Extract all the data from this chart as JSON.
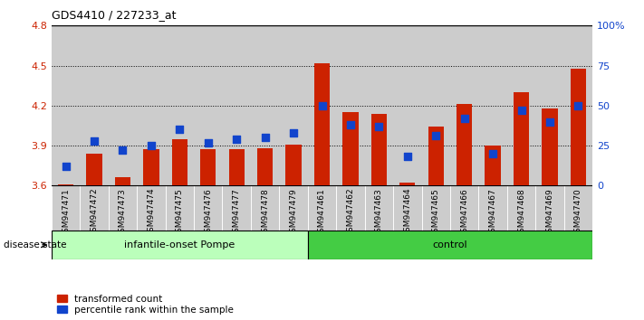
{
  "title": "GDS4410 / 227233_at",
  "samples": [
    "GSM947471",
    "GSM947472",
    "GSM947473",
    "GSM947474",
    "GSM947475",
    "GSM947476",
    "GSM947477",
    "GSM947478",
    "GSM947479",
    "GSM947461",
    "GSM947462",
    "GSM947463",
    "GSM947464",
    "GSM947465",
    "GSM947466",
    "GSM947467",
    "GSM947468",
    "GSM947469",
    "GSM947470"
  ],
  "red_values": [
    3.61,
    3.84,
    3.66,
    3.87,
    3.95,
    3.87,
    3.87,
    3.88,
    3.91,
    4.52,
    4.15,
    4.14,
    3.62,
    4.04,
    4.21,
    3.9,
    4.3,
    4.18,
    4.48
  ],
  "blue_values": [
    12,
    28,
    22,
    25,
    35,
    27,
    29,
    30,
    33,
    50,
    38,
    37,
    18,
    31,
    42,
    20,
    47,
    40,
    50
  ],
  "group1_label": "infantile-onset Pompe",
  "group2_label": "control",
  "group1_count": 9,
  "group2_count": 10,
  "ylim_left": [
    3.6,
    4.8
  ],
  "ylim_right": [
    0,
    100
  ],
  "yticks_left": [
    3.6,
    3.9,
    4.2,
    4.5,
    4.8
  ],
  "yticks_right": [
    0,
    25,
    50,
    75,
    100
  ],
  "ytick_labels_right": [
    "0",
    "25",
    "50",
    "75",
    "100%"
  ],
  "bar_color": "#cc2200",
  "dot_color": "#1144cc",
  "group1_bg": "#bbffbb",
  "group2_bg": "#44cc44",
  "sample_bg": "#cccccc",
  "bar_width": 0.55,
  "dot_size": 30
}
